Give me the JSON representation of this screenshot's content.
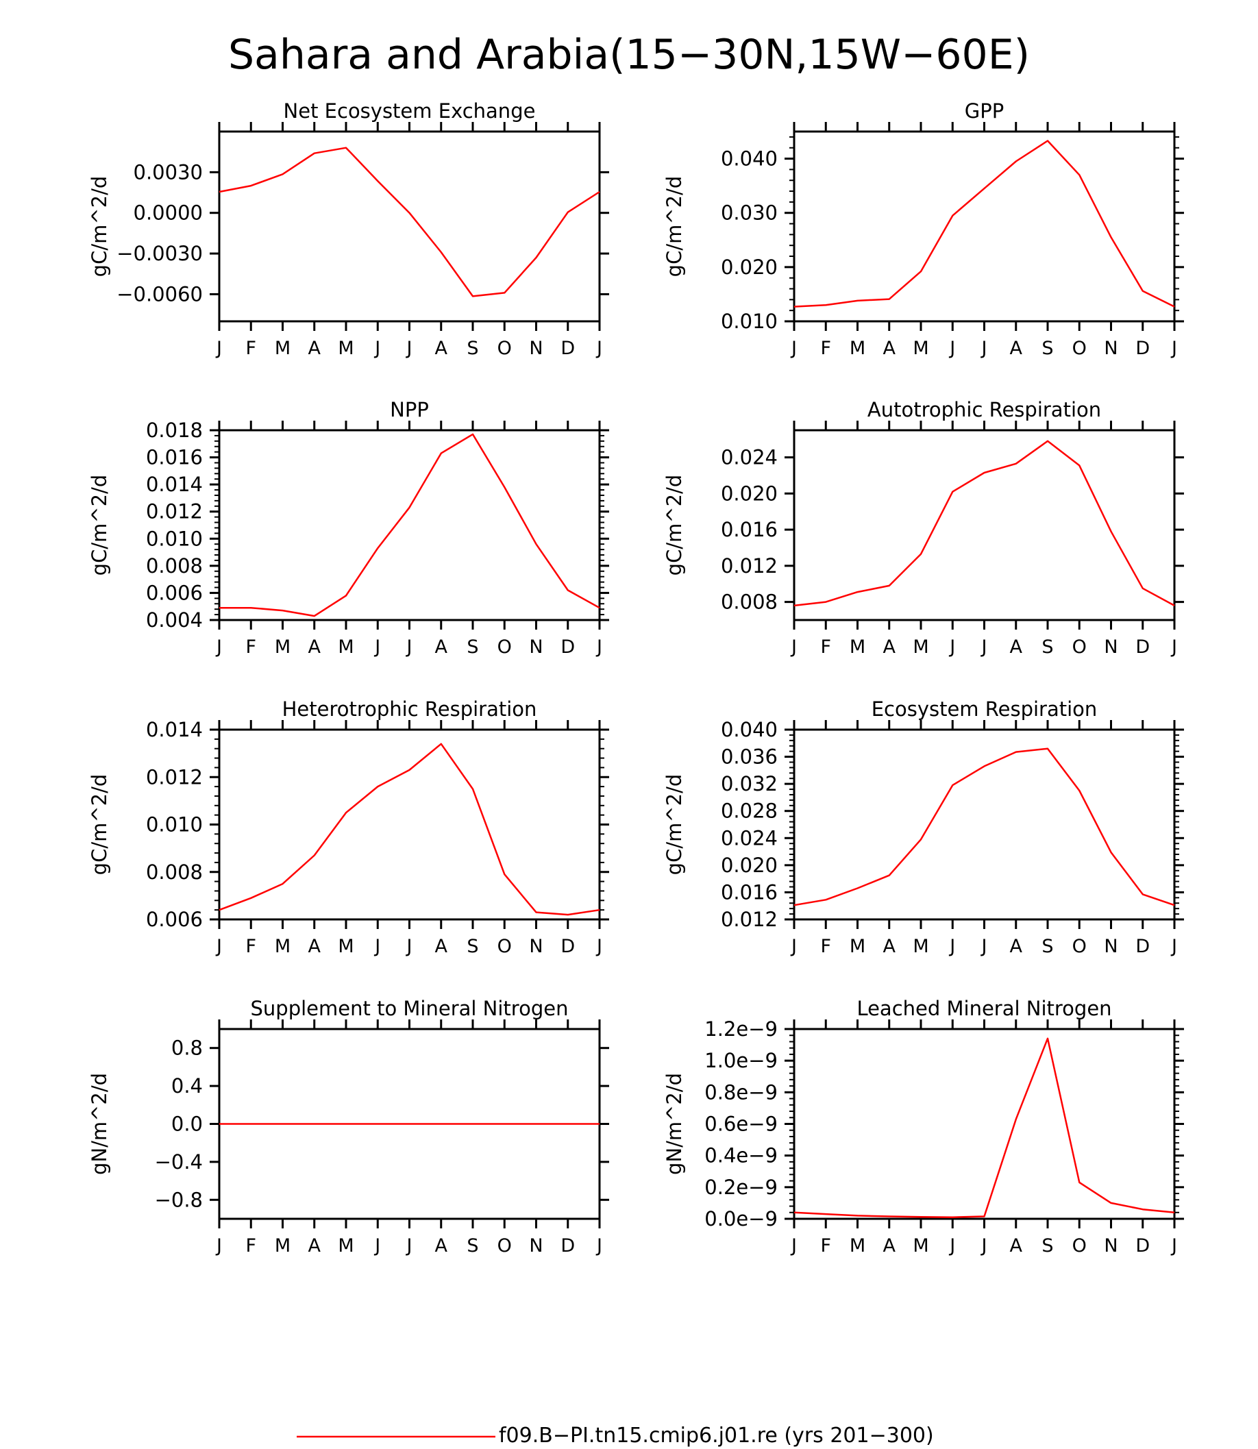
{
  "figure": {
    "title": "Sahara and Arabia(15−30N,15W−60E)",
    "legend_label": "f09.B−PI.tn15.cmip6.j01.re (yrs 201−300)",
    "line_color": "#ff0000"
  },
  "chart_data": [
    {
      "type": "line",
      "title": "Net Ecosystem Exchange",
      "ylabel": "gC/m^2/d",
      "categories": [
        "J",
        "F",
        "M",
        "A",
        "M",
        "J",
        "J",
        "A",
        "S",
        "O",
        "N",
        "D",
        "J"
      ],
      "yticks": [
        -0.006,
        -0.003,
        0.0,
        0.003
      ],
      "ytick_labels": [
        "−0.0060",
        "−0.0030",
        "0.0000",
        "0.0030"
      ],
      "ylim": [
        -0.008,
        0.006
      ],
      "values": [
        0.00155,
        0.002,
        0.00285,
        0.0044,
        0.0048,
        0.00235,
        0.0,
        -0.0029,
        -0.00615,
        -0.0059,
        -0.0033,
        5e-05,
        0.00155
      ]
    },
    {
      "type": "line",
      "title": "GPP",
      "ylabel": "gC/m^2/d",
      "categories": [
        "J",
        "F",
        "M",
        "A",
        "M",
        "J",
        "J",
        "A",
        "S",
        "O",
        "N",
        "D",
        "J"
      ],
      "yticks": [
        0.01,
        0.02,
        0.03,
        0.04
      ],
      "ytick_labels": [
        "0.010",
        "0.020",
        "0.030",
        "0.040"
      ],
      "ylim": [
        0.01,
        0.045
      ],
      "values": [
        0.0127,
        0.013,
        0.0138,
        0.0141,
        0.0192,
        0.0295,
        0.0345,
        0.0395,
        0.0433,
        0.037,
        0.0255,
        0.0156,
        0.0127
      ]
    },
    {
      "type": "line",
      "title": "NPP",
      "ylabel": "gC/m^2/d",
      "categories": [
        "J",
        "F",
        "M",
        "A",
        "M",
        "J",
        "J",
        "A",
        "S",
        "O",
        "N",
        "D",
        "J"
      ],
      "yticks": [
        0.004,
        0.006,
        0.008,
        0.01,
        0.012,
        0.014,
        0.016,
        0.018
      ],
      "ytick_labels": [
        "0.004",
        "0.006",
        "0.008",
        "0.010",
        "0.012",
        "0.014",
        "0.016",
        "0.018"
      ],
      "ylim": [
        0.004,
        0.018
      ],
      "values": [
        0.0049,
        0.0049,
        0.0047,
        0.0043,
        0.0058,
        0.0093,
        0.0123,
        0.0163,
        0.0177,
        0.0138,
        0.0096,
        0.0062,
        0.0049
      ]
    },
    {
      "type": "line",
      "title": "Autotrophic Respiration",
      "ylabel": "gC/m^2/d",
      "categories": [
        "J",
        "F",
        "M",
        "A",
        "M",
        "J",
        "J",
        "A",
        "S",
        "O",
        "N",
        "D",
        "J"
      ],
      "yticks": [
        0.008,
        0.012,
        0.016,
        0.02,
        0.024
      ],
      "ytick_labels": [
        "0.008",
        "0.012",
        "0.016",
        "0.020",
        "0.024"
      ],
      "ylim": [
        0.006,
        0.027
      ],
      "values": [
        0.0076,
        0.008,
        0.0091,
        0.0098,
        0.0133,
        0.0202,
        0.0223,
        0.0233,
        0.0258,
        0.0231,
        0.0158,
        0.0095,
        0.0076
      ]
    },
    {
      "type": "line",
      "title": "Heterotrophic Respiration",
      "ylabel": "gC/m^2/d",
      "categories": [
        "J",
        "F",
        "M",
        "A",
        "M",
        "J",
        "J",
        "A",
        "S",
        "O",
        "N",
        "D",
        "J"
      ],
      "yticks": [
        0.006,
        0.008,
        0.01,
        0.012,
        0.014
      ],
      "ytick_labels": [
        "0.006",
        "0.008",
        "0.010",
        "0.012",
        "0.014"
      ],
      "ylim": [
        0.006,
        0.014
      ],
      "values": [
        0.0064,
        0.0069,
        0.0075,
        0.0087,
        0.0105,
        0.0116,
        0.0123,
        0.0134,
        0.0115,
        0.0079,
        0.0063,
        0.0062,
        0.0064
      ]
    },
    {
      "type": "line",
      "title": "Ecosystem Respiration",
      "ylabel": "gC/m^2/d",
      "categories": [
        "J",
        "F",
        "M",
        "A",
        "M",
        "J",
        "J",
        "A",
        "S",
        "O",
        "N",
        "D",
        "J"
      ],
      "yticks": [
        0.012,
        0.016,
        0.02,
        0.024,
        0.028,
        0.032,
        0.036,
        0.04
      ],
      "ytick_labels": [
        "0.012",
        "0.016",
        "0.020",
        "0.024",
        "0.028",
        "0.032",
        "0.036",
        "0.040"
      ],
      "ylim": [
        0.012,
        0.04
      ],
      "values": [
        0.0141,
        0.0149,
        0.0166,
        0.0185,
        0.0238,
        0.0318,
        0.0346,
        0.0367,
        0.0372,
        0.031,
        0.0219,
        0.0157,
        0.0141
      ]
    },
    {
      "type": "line",
      "title": "Supplement to Mineral Nitrogen",
      "ylabel": "gN/m^2/d",
      "categories": [
        "J",
        "F",
        "M",
        "A",
        "M",
        "J",
        "J",
        "A",
        "S",
        "O",
        "N",
        "D",
        "J"
      ],
      "yticks": [
        -0.8,
        -0.4,
        0.0,
        0.4,
        0.8
      ],
      "ytick_labels": [
        "−0.8",
        "−0.4",
        "0.0",
        "0.4",
        "0.8"
      ],
      "ylim": [
        -1.0,
        1.0
      ],
      "values": [
        0,
        0,
        0,
        0,
        0,
        0,
        0,
        0,
        0,
        0,
        0,
        0,
        0
      ]
    },
    {
      "type": "line",
      "title": "Leached Mineral Nitrogen",
      "ylabel": "gN/m^2/d",
      "categories": [
        "J",
        "F",
        "M",
        "A",
        "M",
        "J",
        "J",
        "A",
        "S",
        "O",
        "N",
        "D",
        "J"
      ],
      "yticks": [
        0.0,
        0.2,
        0.4,
        0.6,
        0.8,
        1.0,
        1.2
      ],
      "ytick_labels": [
        "0.0e−9",
        "0.2e−9",
        "0.4e−9",
        "0.6e−9",
        "0.8e−9",
        "1.0e−9",
        "1.2e−9"
      ],
      "ylim": [
        0.0,
        1.2
      ],
      "values": [
        0.04,
        0.03,
        0.02,
        0.015,
        0.012,
        0.01,
        0.015,
        0.63,
        1.14,
        0.23,
        0.1,
        0.06,
        0.04
      ]
    }
  ]
}
